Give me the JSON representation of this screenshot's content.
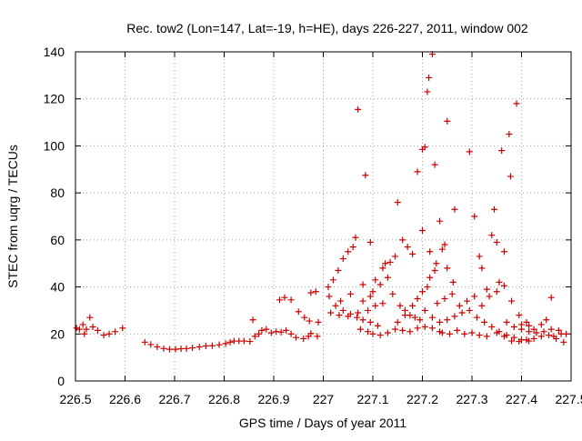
{
  "chart_data": {
    "type": "scatter",
    "title": "Rec. tow2 (Lon=147, Lat=-19, h=HE), days 226-227, 2011, window 002",
    "xlabel": "GPS time / Days of year 2011",
    "ylabel": "STEC from uqrg / TECUs",
    "xlim": [
      226.5,
      227.5
    ],
    "ylim": [
      0,
      140
    ],
    "xticks": [
      226.5,
      226.6,
      226.7,
      226.8,
      226.9,
      227.0,
      227.1,
      227.2,
      227.3,
      227.4,
      227.5
    ],
    "xtick_labels": [
      "226.5",
      "226.6",
      "226.7",
      "226.8",
      "226.9",
      "227",
      "227.1",
      "227.2",
      "227.3",
      "227.4",
      "227.5"
    ],
    "yticks": [
      0,
      20,
      40,
      60,
      80,
      100,
      120,
      140
    ],
    "ytick_labels": [
      "0",
      "20",
      "40",
      "60",
      "80",
      "100",
      "120",
      "140"
    ],
    "grid": true,
    "marker": "+",
    "color": "#cc0000",
    "points": [
      [
        226.502,
        22.5
      ],
      [
        226.508,
        22.0
      ],
      [
        226.515,
        24.0
      ],
      [
        226.518,
        20.0
      ],
      [
        226.522,
        22.0
      ],
      [
        226.529,
        27.0
      ],
      [
        226.535,
        23.0
      ],
      [
        226.545,
        21.5
      ],
      [
        226.557,
        19.5
      ],
      [
        226.568,
        20.0
      ],
      [
        226.58,
        21.0
      ],
      [
        226.595,
        22.5
      ],
      [
        226.64,
        16.5
      ],
      [
        226.652,
        15.5
      ],
      [
        226.665,
        14.5
      ],
      [
        226.678,
        13.8
      ],
      [
        226.69,
        13.5
      ],
      [
        226.702,
        13.5
      ],
      [
        226.713,
        13.7
      ],
      [
        226.724,
        13.8
      ],
      [
        226.736,
        14.1
      ],
      [
        226.75,
        14.5
      ],
      [
        226.763,
        14.9
      ],
      [
        226.776,
        15.0
      ],
      [
        226.79,
        15.4
      ],
      [
        226.803,
        15.9
      ],
      [
        226.812,
        16.5
      ],
      [
        226.82,
        17.0
      ],
      [
        226.83,
        17.0
      ],
      [
        226.84,
        17.0
      ],
      [
        226.852,
        16.8
      ],
      [
        226.858,
        26.0
      ],
      [
        226.862,
        19.0
      ],
      [
        226.87,
        20.0
      ],
      [
        226.876,
        21.5
      ],
      [
        226.885,
        22.0
      ],
      [
        226.895,
        20.5
      ],
      [
        226.905,
        21.0
      ],
      [
        226.915,
        20.8
      ],
      [
        226.925,
        21.5
      ],
      [
        226.935,
        20.0
      ],
      [
        226.945,
        18.5
      ],
      [
        226.96,
        18.0
      ],
      [
        226.97,
        19.0
      ],
      [
        226.975,
        20.2
      ],
      [
        226.988,
        19.0
      ],
      [
        226.912,
        34.5
      ],
      [
        226.922,
        35.5
      ],
      [
        226.935,
        34.5
      ],
      [
        226.95,
        29.5
      ],
      [
        226.962,
        27.0
      ],
      [
        226.972,
        25.5
      ],
      [
        226.975,
        37.5
      ],
      [
        226.985,
        38.0
      ],
      [
        226.99,
        25.0
      ],
      [
        227.01,
        40.0
      ],
      [
        227.02,
        43.0
      ],
      [
        227.03,
        47.0
      ],
      [
        227.04,
        52.0
      ],
      [
        227.05,
        55.0
      ],
      [
        227.06,
        57.0
      ],
      [
        227.065,
        61.0
      ],
      [
        227.07,
        115.5
      ],
      [
        227.085,
        87.5
      ],
      [
        227.095,
        59.0
      ],
      [
        227.012,
        36.0
      ],
      [
        227.025,
        32.0
      ],
      [
        227.04,
        30.0
      ],
      [
        227.055,
        28.5
      ],
      [
        227.068,
        27.0
      ],
      [
        227.08,
        26.0
      ],
      [
        227.095,
        25.0
      ],
      [
        227.11,
        23.5
      ],
      [
        227.015,
        29.0
      ],
      [
        227.032,
        28.0
      ],
      [
        227.05,
        27.5
      ],
      [
        227.07,
        29.0
      ],
      [
        227.09,
        30.0
      ],
      [
        227.105,
        32.0
      ],
      [
        227.12,
        33.0
      ],
      [
        227.035,
        34.0
      ],
      [
        227.055,
        37.0
      ],
      [
        227.08,
        34.0
      ],
      [
        227.1,
        38.0
      ],
      [
        227.115,
        41.0
      ],
      [
        227.13,
        44.0
      ],
      [
        227.075,
        22.0
      ],
      [
        227.09,
        21.0
      ],
      [
        227.1,
        20.0
      ],
      [
        227.115,
        19.5
      ],
      [
        227.13,
        20.5
      ],
      [
        227.08,
        41.0
      ],
      [
        227.095,
        36.0
      ],
      [
        227.105,
        43.0
      ],
      [
        227.12,
        48.0
      ],
      [
        227.125,
        50.0
      ],
      [
        227.135,
        50.5
      ],
      [
        227.145,
        53.0
      ],
      [
        227.15,
        76.0
      ],
      [
        227.16,
        60.0
      ],
      [
        227.17,
        57.0
      ],
      [
        227.18,
        54.0
      ],
      [
        227.14,
        37.0
      ],
      [
        227.155,
        32.0
      ],
      [
        227.165,
        30.0
      ],
      [
        227.175,
        28.0
      ],
      [
        227.185,
        27.0
      ],
      [
        227.195,
        26.0
      ],
      [
        227.145,
        22.0
      ],
      [
        227.16,
        21.5
      ],
      [
        227.175,
        21.0
      ],
      [
        227.19,
        22.5
      ],
      [
        227.205,
        23.0
      ],
      [
        227.22,
        22.5
      ],
      [
        227.235,
        21.0
      ],
      [
        227.15,
        25.0
      ],
      [
        227.165,
        28.0
      ],
      [
        227.18,
        32.0
      ],
      [
        227.19,
        35.0
      ],
      [
        227.2,
        38.0
      ],
      [
        227.21,
        40.0
      ],
      [
        227.215,
        44.0
      ],
      [
        227.225,
        47.0
      ],
      [
        227.19,
        89.0
      ],
      [
        227.2,
        98.5
      ],
      [
        227.205,
        99.5
      ],
      [
        227.21,
        123.0
      ],
      [
        227.213,
        129.0
      ],
      [
        227.22,
        139.0
      ],
      [
        227.225,
        92.0
      ],
      [
        227.235,
        68.0
      ],
      [
        227.245,
        58.0
      ],
      [
        227.25,
        110.5
      ],
      [
        227.265,
        73.0
      ],
      [
        227.2,
        64.0
      ],
      [
        227.215,
        55.0
      ],
      [
        227.228,
        50.0
      ],
      [
        227.24,
        56.0
      ],
      [
        227.25,
        48.0
      ],
      [
        227.262,
        42.0
      ],
      [
        227.205,
        30.0
      ],
      [
        227.22,
        27.0
      ],
      [
        227.235,
        25.0
      ],
      [
        227.25,
        26.0
      ],
      [
        227.265,
        27.5
      ],
      [
        227.28,
        29.0
      ],
      [
        227.295,
        30.0
      ],
      [
        227.23,
        33.0
      ],
      [
        227.245,
        35.0
      ],
      [
        227.26,
        37.0
      ],
      [
        227.275,
        32.0
      ],
      [
        227.29,
        34.0
      ],
      [
        227.305,
        36.0
      ],
      [
        227.24,
        20.5
      ],
      [
        227.255,
        20.0
      ],
      [
        227.27,
        21.5
      ],
      [
        227.285,
        20.0
      ],
      [
        227.3,
        20.5
      ],
      [
        227.315,
        19.5
      ],
      [
        227.33,
        19.0
      ],
      [
        227.295,
        97.5
      ],
      [
        227.305,
        70.0
      ],
      [
        227.315,
        53.0
      ],
      [
        227.32,
        48.0
      ],
      [
        227.33,
        39.0
      ],
      [
        227.34,
        62.0
      ],
      [
        227.345,
        73.0
      ],
      [
        227.35,
        59.0
      ],
      [
        227.355,
        42.0
      ],
      [
        227.36,
        98.0
      ],
      [
        227.365,
        55.0
      ],
      [
        227.375,
        105.0
      ],
      [
        227.378,
        87.0
      ],
      [
        227.39,
        118.0
      ],
      [
        227.31,
        27.0
      ],
      [
        227.325,
        25.0
      ],
      [
        227.34,
        23.0
      ],
      [
        227.355,
        21.0
      ],
      [
        227.37,
        19.5
      ],
      [
        227.385,
        18.5
      ],
      [
        227.4,
        17.5
      ],
      [
        227.415,
        17.0
      ],
      [
        227.32,
        32.0
      ],
      [
        227.335,
        36.0
      ],
      [
        227.35,
        38.0
      ],
      [
        227.365,
        40.5
      ],
      [
        227.38,
        34.0
      ],
      [
        227.395,
        28.0
      ],
      [
        227.41,
        25.0
      ],
      [
        227.35,
        20.5
      ],
      [
        227.365,
        19.0
      ],
      [
        227.38,
        17.0
      ],
      [
        227.395,
        16.8
      ],
      [
        227.41,
        17.5
      ],
      [
        227.425,
        18.0
      ],
      [
        227.44,
        19.0
      ],
      [
        227.455,
        19.5
      ],
      [
        227.47,
        18.0
      ],
      [
        227.485,
        16.5
      ],
      [
        227.37,
        25.0
      ],
      [
        227.385,
        23.0
      ],
      [
        227.4,
        22.0
      ],
      [
        227.415,
        21.0
      ],
      [
        227.43,
        20.5
      ],
      [
        227.445,
        21.0
      ],
      [
        227.46,
        22.0
      ],
      [
        227.475,
        21.5
      ],
      [
        227.49,
        20.0
      ],
      [
        227.4,
        24.0
      ],
      [
        227.415,
        23.5
      ],
      [
        227.425,
        22.0
      ],
      [
        227.44,
        24.0
      ],
      [
        227.45,
        26.0
      ],
      [
        227.46,
        35.5
      ],
      [
        227.465,
        19.0
      ],
      [
        227.48,
        20.0
      ]
    ]
  }
}
